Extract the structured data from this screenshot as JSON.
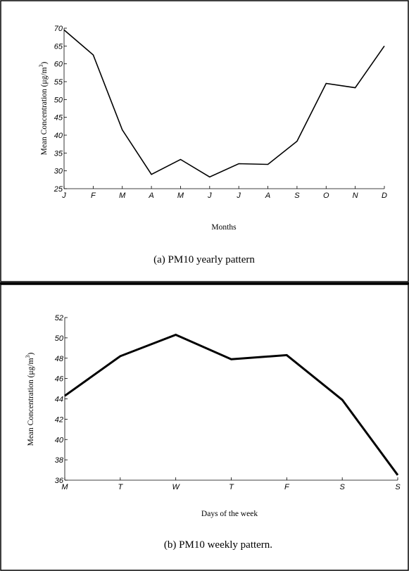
{
  "chart_data": [
    {
      "type": "line",
      "caption": "(a) PM10 yearly pattern",
      "xlabel": "Months",
      "ylabel_main": "Mean Concentration (μg/m",
      "ylabel_sup": "3",
      "ylabel_close": ")",
      "categories": [
        "J",
        "F",
        "M",
        "A",
        "M",
        "J",
        "J",
        "A",
        "S",
        "O",
        "N",
        "D"
      ],
      "values": [
        69.5,
        62.5,
        41.5,
        29.0,
        33.2,
        28.3,
        32.0,
        31.8,
        38.3,
        54.5,
        53.3,
        65.0
      ],
      "ylim": [
        25,
        70
      ],
      "yticks": [
        25,
        30,
        35,
        40,
        45,
        50,
        55,
        60,
        65,
        70
      ],
      "grid": false
    },
    {
      "type": "line",
      "caption": "(b) PM10 weekly pattern.",
      "xlabel": "Days of the week",
      "ylabel_main": "Mean Concentration (μg/m",
      "ylabel_sup": "3",
      "ylabel_close": ")",
      "categories": [
        "M",
        "T",
        "W",
        "T",
        "F",
        "S",
        "S"
      ],
      "values": [
        44.3,
        48.2,
        50.3,
        47.9,
        48.3,
        43.9,
        36.5
      ],
      "ylim": [
        36,
        52
      ],
      "yticks": [
        36,
        38,
        40,
        42,
        44,
        46,
        48,
        50,
        52
      ],
      "grid": false
    }
  ]
}
